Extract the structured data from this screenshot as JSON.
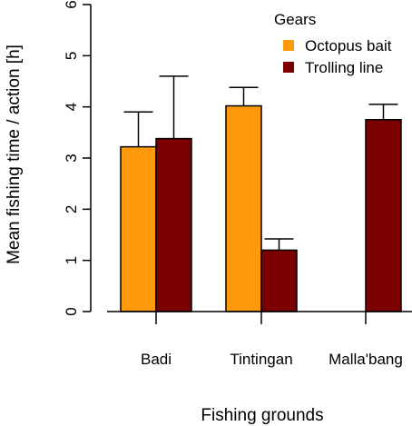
{
  "chart_data": {
    "type": "bar",
    "xlabel": "Fishing grounds",
    "ylabel": "Mean fishing time / action [h]",
    "ylim": [
      0,
      6
    ],
    "yticks": [
      0,
      1,
      2,
      3,
      4,
      5,
      6
    ],
    "categories": [
      "Badi",
      "Tintingan",
      "Malla'bang"
    ],
    "series": [
      {
        "name": "Octopus bait",
        "color": "#FF9A0E",
        "values": [
          3.22,
          4.02,
          null
        ],
        "error_upper": [
          3.9,
          4.38,
          null
        ]
      },
      {
        "name": "Trolling line",
        "color": "#7B0000",
        "values": [
          3.38,
          1.2,
          3.75
        ],
        "error_upper": [
          4.6,
          1.42,
          4.05
        ]
      }
    ],
    "legend": {
      "title": "Gears",
      "position": "top-right"
    }
  }
}
